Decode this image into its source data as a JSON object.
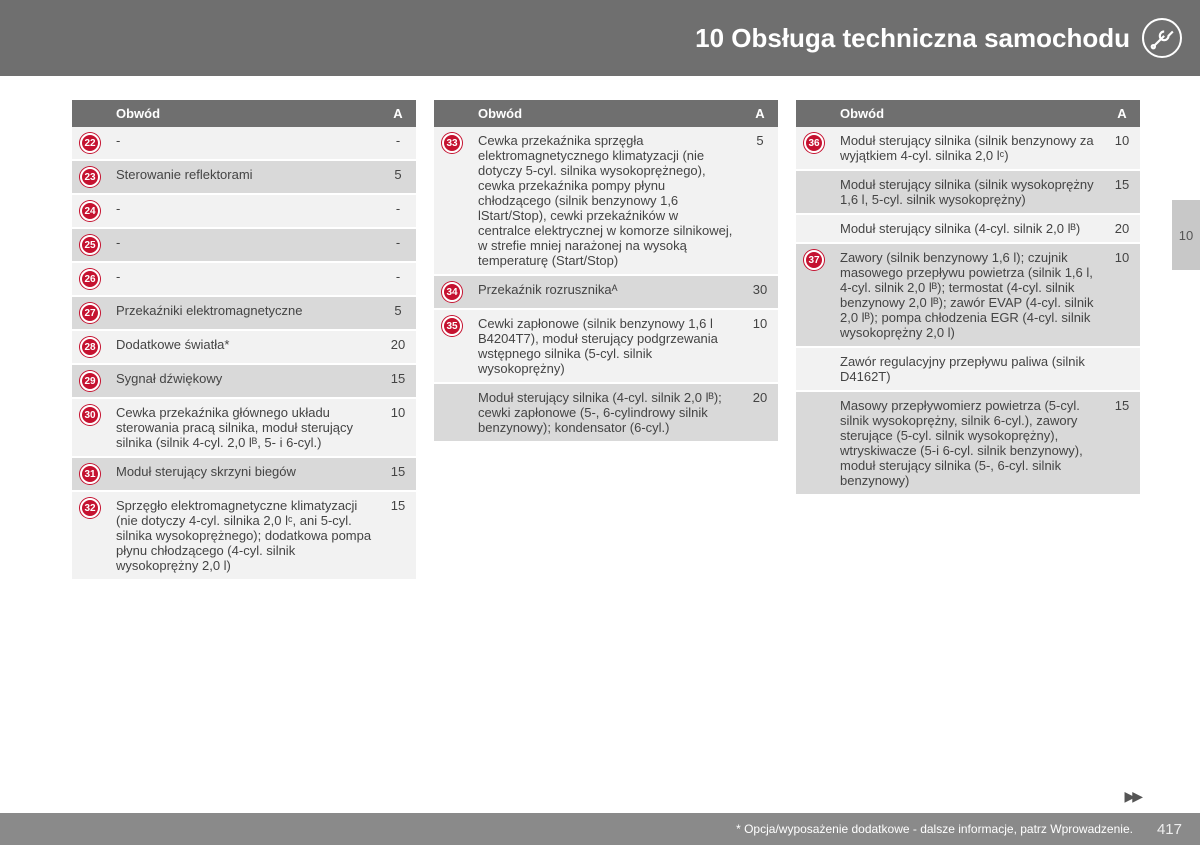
{
  "header": {
    "chapter": "10 Obsługa techniczna samochodu"
  },
  "sideTab": {
    "label": "10"
  },
  "tableHeader": {
    "circuit": "Obwód",
    "amp": "A"
  },
  "footer": {
    "note": "* Opcja/wyposażenie dodatkowe - dalsze informacje, patrz Wprowadzenie.",
    "page": "417"
  },
  "col1": [
    {
      "num": "22",
      "desc": "-",
      "amp": "-",
      "shade": "lt"
    },
    {
      "num": "23",
      "desc": "Sterowanie reflektorami",
      "amp": "5",
      "shade": "dk"
    },
    {
      "num": "24",
      "desc": "-",
      "amp": "-",
      "shade": "lt"
    },
    {
      "num": "25",
      "desc": "-",
      "amp": "-",
      "shade": "dk"
    },
    {
      "num": "26",
      "desc": "-",
      "amp": "-",
      "shade": "lt"
    },
    {
      "num": "27",
      "desc": "Przekaźniki elektromagnetyczne",
      "amp": "5",
      "shade": "dk"
    },
    {
      "num": "28",
      "desc": "Dodatkowe światła*",
      "amp": "20",
      "shade": "lt"
    },
    {
      "num": "29",
      "desc": "Sygnał dźwiękowy",
      "amp": "15",
      "shade": "dk"
    },
    {
      "num": "30",
      "desc": "Cewka przekaźnika głównego układu sterowania pracą silnika, moduł sterujący silnika (silnik 4-cyl. 2,0 lᴮ, 5- i 6-cyl.)",
      "amp": "10",
      "shade": "lt"
    },
    {
      "num": "31",
      "desc": "Moduł sterujący skrzyni biegów",
      "amp": "15",
      "shade": "dk"
    },
    {
      "num": "32",
      "desc": "Sprzęgło elektromagnetyczne klimatyzacji (nie dotyczy 4-cyl. silnika 2,0 lᶜ, ani 5-cyl. silnika wysokoprężnego); dodatkowa pompa płynu chłodzącego (4-cyl. silnik wysokoprężny 2,0 l)",
      "amp": "15",
      "shade": "lt"
    }
  ],
  "col2": [
    {
      "num": "33",
      "desc": "Cewka przekaźnika sprzęgła elektromagnetycznego klimatyzacji (nie dotyczy 5-cyl. silnika wysokoprężnego), cewka przekaźnika pompy płynu chłodzącego (silnik benzynowy 1,6 lStart/Stop), cewki przekaźników w centralce elektrycznej w komorze silnikowej, w strefie mniej narażonej na wysoką temperaturę (Start/Stop)",
      "amp": "5",
      "shade": "lt"
    },
    {
      "num": "34",
      "desc": "Przekaźnik rozrusznikaᴬ",
      "amp": "30",
      "shade": "dk"
    },
    {
      "num": "35",
      "desc": "Cewki zapłonowe (silnik benzynowy 1,6 l B4204T7), moduł sterujący podgrzewania wstępnego silnika (5-cyl. silnik wysokoprężny)",
      "amp": "10",
      "shade": "lt"
    },
    {
      "num": "",
      "desc": "Moduł sterujący silnika (4-cyl. silnik 2,0 lᴮ); cewki zapłonowe (5-, 6-cylindrowy silnik benzynowy); kondensator (6-cyl.)",
      "amp": "20",
      "shade": "dk"
    }
  ],
  "col3": [
    {
      "num": "36",
      "desc": "Moduł sterujący silnika (silnik benzynowy za wyjątkiem 4-cyl. silnika 2,0 lᶜ)",
      "amp": "10",
      "shade": "lt"
    },
    {
      "num": "",
      "desc": "Moduł sterujący silnika (silnik wysokoprężny 1,6 l, 5-cyl. silnik wysokoprężny)",
      "amp": "15",
      "shade": "dk"
    },
    {
      "num": "",
      "desc": "Moduł sterujący silnika (4-cyl. silnik 2,0 lᴮ)",
      "amp": "20",
      "shade": "lt"
    },
    {
      "num": "37",
      "desc": "Zawory (silnik benzynowy 1,6 l); czujnik masowego przepływu powietrza (silnik 1,6 l, 4-cyl. silnik 2,0 lᴮ); termostat (4-cyl. silnik benzynowy 2,0 lᴮ); zawór EVAP (4-cyl. silnik 2,0 lᴮ); pompa chłodzenia EGR (4-cyl. silnik wysokoprężny 2,0 l)",
      "amp": "10",
      "shade": "dk"
    },
    {
      "num": "",
      "desc": "Zawór regulacyjny przepływu paliwa (silnik D4162T)",
      "amp": "",
      "shade": "lt"
    },
    {
      "num": "",
      "desc": "Masowy przepływomierz powietrza (5-cyl. silnik wysokoprężny, silnik 6-cyl.), zawory sterujące (5-cyl. silnik wysokoprężny), wtryskiwacze (5-i 6-cyl. silnik benzynowy), moduł sterujący silnika (5-, 6-cyl. silnik benzynowy)",
      "amp": "15",
      "shade": "dk"
    }
  ]
}
